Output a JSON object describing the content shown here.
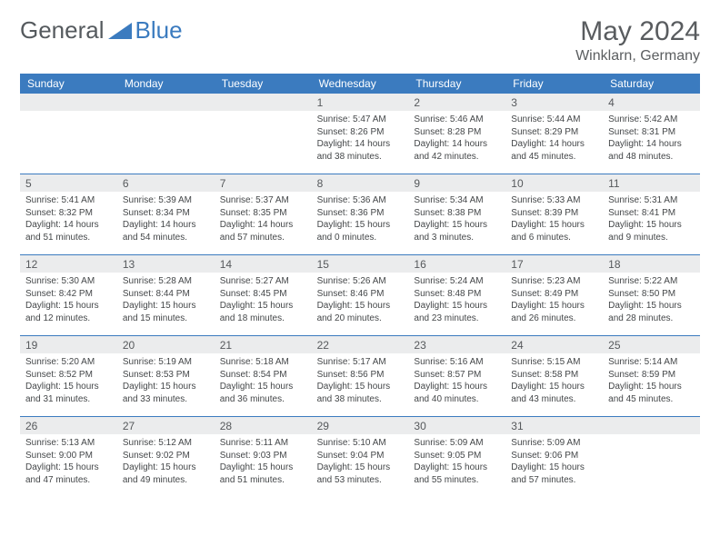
{
  "logo": {
    "text1": "General",
    "text2": "Blue"
  },
  "title": "May 2024",
  "location": "Winklarn, Germany",
  "colors": {
    "header_bg": "#3b7bbf",
    "daynum_bg": "#ebeced",
    "text_dark": "#56595c",
    "white": "#ffffff",
    "rule": "#3b7bbf"
  },
  "weekdays": [
    "Sunday",
    "Monday",
    "Tuesday",
    "Wednesday",
    "Thursday",
    "Friday",
    "Saturday"
  ],
  "weeks": [
    [
      {
        "num": "",
        "sunrise": "",
        "sunset": "",
        "daylight": ""
      },
      {
        "num": "",
        "sunrise": "",
        "sunset": "",
        "daylight": ""
      },
      {
        "num": "",
        "sunrise": "",
        "sunset": "",
        "daylight": ""
      },
      {
        "num": "1",
        "sunrise": "Sunrise: 5:47 AM",
        "sunset": "Sunset: 8:26 PM",
        "daylight": "Daylight: 14 hours and 38 minutes."
      },
      {
        "num": "2",
        "sunrise": "Sunrise: 5:46 AM",
        "sunset": "Sunset: 8:28 PM",
        "daylight": "Daylight: 14 hours and 42 minutes."
      },
      {
        "num": "3",
        "sunrise": "Sunrise: 5:44 AM",
        "sunset": "Sunset: 8:29 PM",
        "daylight": "Daylight: 14 hours and 45 minutes."
      },
      {
        "num": "4",
        "sunrise": "Sunrise: 5:42 AM",
        "sunset": "Sunset: 8:31 PM",
        "daylight": "Daylight: 14 hours and 48 minutes."
      }
    ],
    [
      {
        "num": "5",
        "sunrise": "Sunrise: 5:41 AM",
        "sunset": "Sunset: 8:32 PM",
        "daylight": "Daylight: 14 hours and 51 minutes."
      },
      {
        "num": "6",
        "sunrise": "Sunrise: 5:39 AM",
        "sunset": "Sunset: 8:34 PM",
        "daylight": "Daylight: 14 hours and 54 minutes."
      },
      {
        "num": "7",
        "sunrise": "Sunrise: 5:37 AM",
        "sunset": "Sunset: 8:35 PM",
        "daylight": "Daylight: 14 hours and 57 minutes."
      },
      {
        "num": "8",
        "sunrise": "Sunrise: 5:36 AM",
        "sunset": "Sunset: 8:36 PM",
        "daylight": "Daylight: 15 hours and 0 minutes."
      },
      {
        "num": "9",
        "sunrise": "Sunrise: 5:34 AM",
        "sunset": "Sunset: 8:38 PM",
        "daylight": "Daylight: 15 hours and 3 minutes."
      },
      {
        "num": "10",
        "sunrise": "Sunrise: 5:33 AM",
        "sunset": "Sunset: 8:39 PM",
        "daylight": "Daylight: 15 hours and 6 minutes."
      },
      {
        "num": "11",
        "sunrise": "Sunrise: 5:31 AM",
        "sunset": "Sunset: 8:41 PM",
        "daylight": "Daylight: 15 hours and 9 minutes."
      }
    ],
    [
      {
        "num": "12",
        "sunrise": "Sunrise: 5:30 AM",
        "sunset": "Sunset: 8:42 PM",
        "daylight": "Daylight: 15 hours and 12 minutes."
      },
      {
        "num": "13",
        "sunrise": "Sunrise: 5:28 AM",
        "sunset": "Sunset: 8:44 PM",
        "daylight": "Daylight: 15 hours and 15 minutes."
      },
      {
        "num": "14",
        "sunrise": "Sunrise: 5:27 AM",
        "sunset": "Sunset: 8:45 PM",
        "daylight": "Daylight: 15 hours and 18 minutes."
      },
      {
        "num": "15",
        "sunrise": "Sunrise: 5:26 AM",
        "sunset": "Sunset: 8:46 PM",
        "daylight": "Daylight: 15 hours and 20 minutes."
      },
      {
        "num": "16",
        "sunrise": "Sunrise: 5:24 AM",
        "sunset": "Sunset: 8:48 PM",
        "daylight": "Daylight: 15 hours and 23 minutes."
      },
      {
        "num": "17",
        "sunrise": "Sunrise: 5:23 AM",
        "sunset": "Sunset: 8:49 PM",
        "daylight": "Daylight: 15 hours and 26 minutes."
      },
      {
        "num": "18",
        "sunrise": "Sunrise: 5:22 AM",
        "sunset": "Sunset: 8:50 PM",
        "daylight": "Daylight: 15 hours and 28 minutes."
      }
    ],
    [
      {
        "num": "19",
        "sunrise": "Sunrise: 5:20 AM",
        "sunset": "Sunset: 8:52 PM",
        "daylight": "Daylight: 15 hours and 31 minutes."
      },
      {
        "num": "20",
        "sunrise": "Sunrise: 5:19 AM",
        "sunset": "Sunset: 8:53 PM",
        "daylight": "Daylight: 15 hours and 33 minutes."
      },
      {
        "num": "21",
        "sunrise": "Sunrise: 5:18 AM",
        "sunset": "Sunset: 8:54 PM",
        "daylight": "Daylight: 15 hours and 36 minutes."
      },
      {
        "num": "22",
        "sunrise": "Sunrise: 5:17 AM",
        "sunset": "Sunset: 8:56 PM",
        "daylight": "Daylight: 15 hours and 38 minutes."
      },
      {
        "num": "23",
        "sunrise": "Sunrise: 5:16 AM",
        "sunset": "Sunset: 8:57 PM",
        "daylight": "Daylight: 15 hours and 40 minutes."
      },
      {
        "num": "24",
        "sunrise": "Sunrise: 5:15 AM",
        "sunset": "Sunset: 8:58 PM",
        "daylight": "Daylight: 15 hours and 43 minutes."
      },
      {
        "num": "25",
        "sunrise": "Sunrise: 5:14 AM",
        "sunset": "Sunset: 8:59 PM",
        "daylight": "Daylight: 15 hours and 45 minutes."
      }
    ],
    [
      {
        "num": "26",
        "sunrise": "Sunrise: 5:13 AM",
        "sunset": "Sunset: 9:00 PM",
        "daylight": "Daylight: 15 hours and 47 minutes."
      },
      {
        "num": "27",
        "sunrise": "Sunrise: 5:12 AM",
        "sunset": "Sunset: 9:02 PM",
        "daylight": "Daylight: 15 hours and 49 minutes."
      },
      {
        "num": "28",
        "sunrise": "Sunrise: 5:11 AM",
        "sunset": "Sunset: 9:03 PM",
        "daylight": "Daylight: 15 hours and 51 minutes."
      },
      {
        "num": "29",
        "sunrise": "Sunrise: 5:10 AM",
        "sunset": "Sunset: 9:04 PM",
        "daylight": "Daylight: 15 hours and 53 minutes."
      },
      {
        "num": "30",
        "sunrise": "Sunrise: 5:09 AM",
        "sunset": "Sunset: 9:05 PM",
        "daylight": "Daylight: 15 hours and 55 minutes."
      },
      {
        "num": "31",
        "sunrise": "Sunrise: 5:09 AM",
        "sunset": "Sunset: 9:06 PM",
        "daylight": "Daylight: 15 hours and 57 minutes."
      },
      {
        "num": "",
        "sunrise": "",
        "sunset": "",
        "daylight": ""
      }
    ]
  ]
}
